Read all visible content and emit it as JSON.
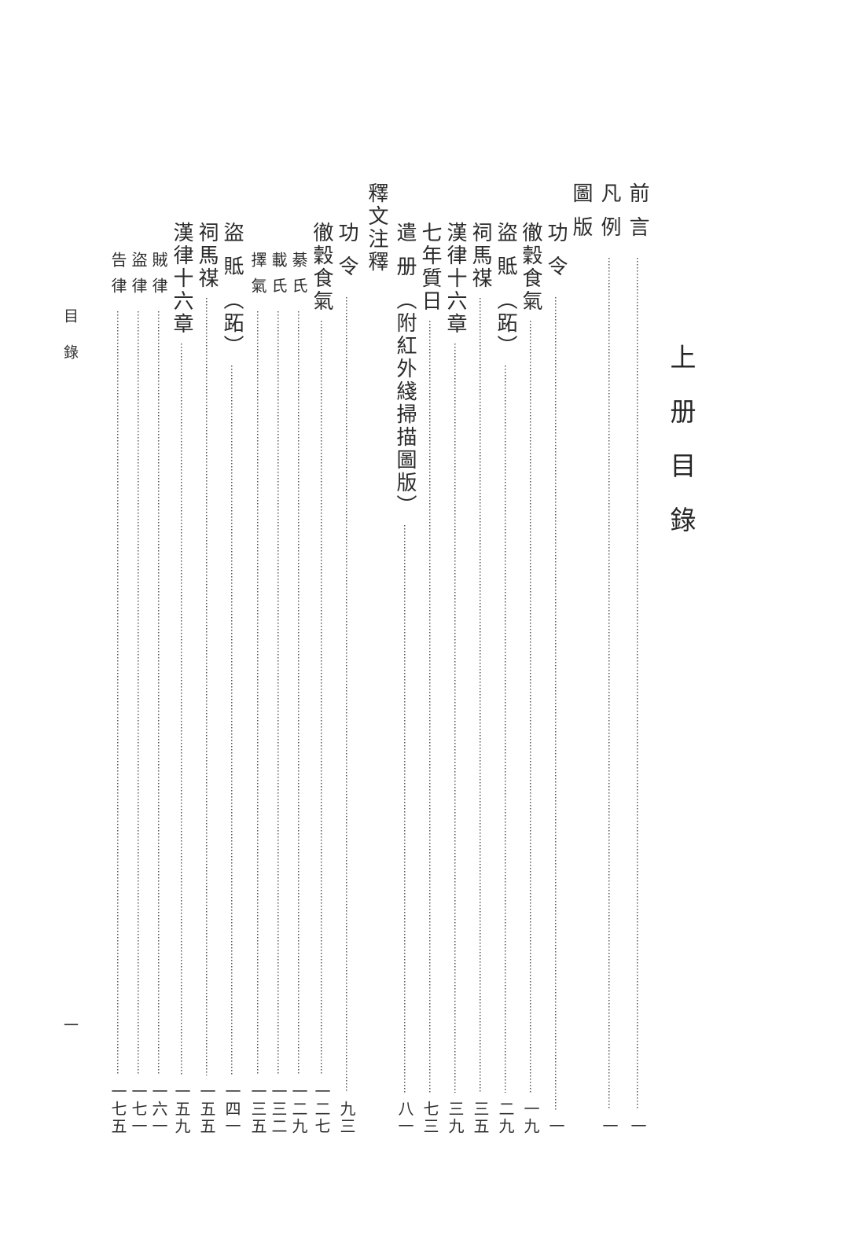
{
  "page": {
    "background_color": "#ffffff",
    "text_color": "#2b2b2b",
    "leader_dot_color": "#575757"
  },
  "volume_title": "上册目錄",
  "running_head": "目錄",
  "folio": "一",
  "toc": {
    "items": [
      {
        "title": "前言",
        "page": "一"
      },
      {
        "title": "凡例",
        "page": "一"
      },
      {
        "title": "圖版"
      },
      {
        "title": "功令",
        "page": "一"
      },
      {
        "title": "徹穀食氣",
        "page": "一九"
      },
      {
        "title": "盜貾",
        "annot": "（跖）",
        "page": "二九"
      },
      {
        "title": "祠馬禖",
        "page": "三五"
      },
      {
        "title": "漢律十六章",
        "page": "三九"
      },
      {
        "title": "七年質日",
        "page": "七三"
      },
      {
        "title": "遣册",
        "annot": "（附紅外綫掃描圖版）",
        "page": "八一"
      },
      {
        "title": "釋文注釋"
      },
      {
        "title": "功令",
        "page": "九三"
      },
      {
        "title": "徹穀食氣",
        "page": "一二七"
      },
      {
        "title": "綦氏",
        "page": "一二九"
      },
      {
        "title": "載氏",
        "page": "一三二"
      },
      {
        "title": "擇氣",
        "page": "一三五"
      },
      {
        "title": "盜貾",
        "annot": "（跖）",
        "page": "一四一"
      },
      {
        "title": "祠馬禖",
        "page": "一五五"
      },
      {
        "title": "漢律十六章",
        "page": "一五九"
      },
      {
        "title": "賊律",
        "page": "一六一"
      },
      {
        "title": "盜律",
        "page": "一七一"
      },
      {
        "title": "告律",
        "page": "一七五"
      }
    ]
  }
}
